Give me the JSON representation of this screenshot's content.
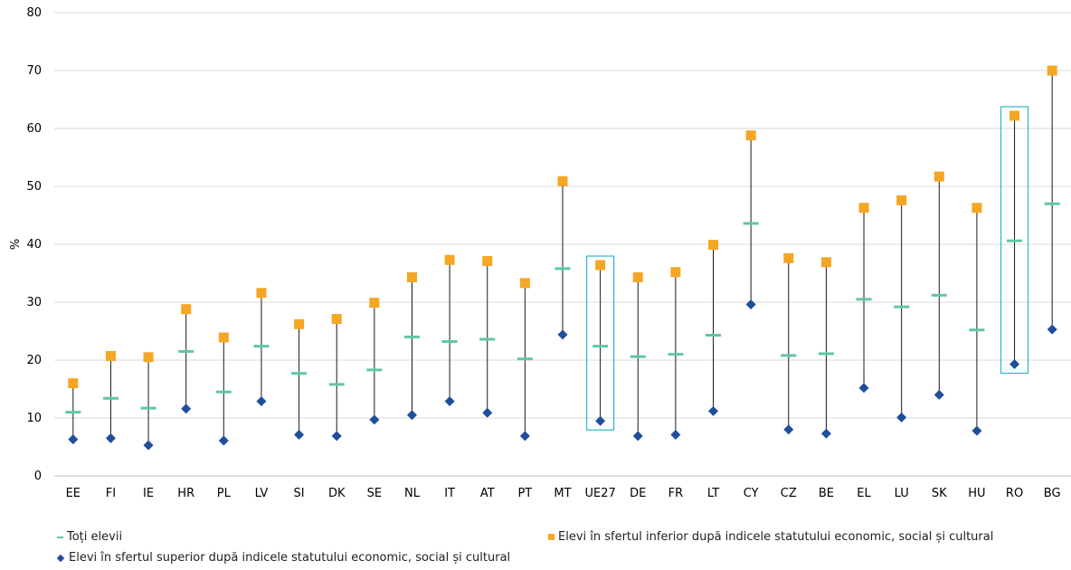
{
  "chart_data": {
    "type": "scatter",
    "ylabel": "%",
    "ylim": [
      0,
      80
    ],
    "yticks": [
      0,
      10,
      20,
      30,
      40,
      50,
      60,
      70,
      80
    ],
    "grid": true,
    "categories": [
      "EE",
      "FI",
      "IE",
      "HR",
      "PL",
      "LV",
      "SI",
      "DK",
      "SE",
      "NL",
      "IT",
      "AT",
      "PT",
      "MT",
      "UE27",
      "DE",
      "FR",
      "LT",
      "CY",
      "CZ",
      "BE",
      "EL",
      "LU",
      "SK",
      "HU",
      "RO",
      "BG"
    ],
    "highlighted": [
      "UE27",
      "RO"
    ],
    "series": [
      {
        "name": "Toți elevii",
        "marker": "dash",
        "color": "#5fc6a8",
        "values": [
          11,
          13.4,
          11.7,
          21.5,
          14.5,
          22.4,
          17.7,
          15.8,
          18.3,
          24,
          23.2,
          23.6,
          20.2,
          35.8,
          22.4,
          20.6,
          21,
          24.3,
          43.6,
          20.8,
          21.1,
          30.5,
          29.2,
          31.2,
          25.2,
          40.6,
          47
        ]
      },
      {
        "name": "Elevi în sfertul inferior după indicele statutului economic, social și cultural",
        "marker": "square",
        "color": "#f5a623",
        "values": [
          16,
          20.7,
          20.5,
          28.8,
          23.9,
          31.6,
          26.2,
          27.1,
          29.9,
          34.3,
          37.3,
          37.1,
          33.3,
          50.9,
          36.4,
          34.3,
          35.2,
          39.9,
          58.8,
          37.6,
          36.9,
          46.3,
          47.6,
          51.7,
          46.3,
          62.2,
          70
        ]
      },
      {
        "name": "Elevi în sfertul superior după indicele statutului economic, social și cultural",
        "marker": "diamond",
        "color": "#1f4e9b",
        "values": [
          6.3,
          6.5,
          5.3,
          11.6,
          6.1,
          12.9,
          7.1,
          6.9,
          9.7,
          10.5,
          12.9,
          10.9,
          6.9,
          24.4,
          9.5,
          6.9,
          7.1,
          11.2,
          29.6,
          8,
          7.3,
          15.2,
          10.1,
          14,
          7.8,
          19.3,
          25.3
        ]
      }
    ],
    "legend_position": "bottom"
  }
}
